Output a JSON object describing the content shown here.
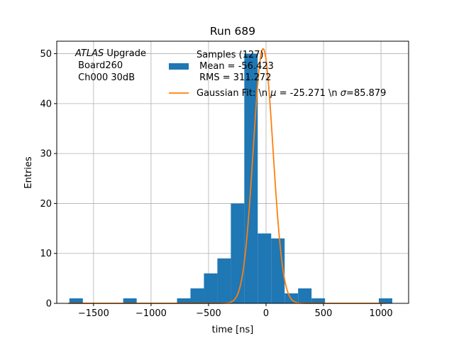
{
  "chart_data": {
    "type": "bar",
    "title": "Run 689",
    "xlabel": "time [ns]",
    "ylabel": "Entries",
    "xlim": [
      -1820,
      1240
    ],
    "ylim": [
      0,
      52.5
    ],
    "xticks": [
      -1500,
      -1000,
      -500,
      0,
      500,
      1000
    ],
    "xtick_labels": [
      "−1500",
      "−1000",
      "−500",
      "0",
      "500",
      "1000"
    ],
    "yticks": [
      0,
      10,
      20,
      30,
      40,
      50
    ],
    "ytick_labels": [
      "0",
      "10",
      "20",
      "30",
      "40",
      "50"
    ],
    "grid": true,
    "annotation_lines": [
      {
        "prefix": "",
        "italic": "ATLAS",
        "suffix": " Upgrade"
      },
      {
        "prefix": " Board260",
        "italic": "",
        "suffix": ""
      },
      {
        "prefix": " Ch000 30dB",
        "italic": "",
        "suffix": ""
      }
    ],
    "histogram": {
      "name_lines": [
        "Samples (127)",
        " Mean = -56.423",
        " RMS = 311.272"
      ],
      "color": "#1f77b4",
      "bin_edges": [
        -1710,
        -1593,
        -1476,
        -1359,
        -1242,
        -1125,
        -1008,
        -891,
        -774,
        -657,
        -540,
        -423,
        -306,
        -189,
        -72,
        45,
        162,
        279,
        396,
        513,
        630,
        747,
        864,
        981,
        1098
      ],
      "counts": [
        1,
        0,
        0,
        0,
        1,
        0,
        0,
        0,
        1,
        3,
        6,
        9,
        20,
        50,
        14,
        13,
        2,
        3,
        1,
        0,
        0,
        0,
        0,
        1
      ]
    },
    "fit": {
      "name": "Gaussian Fit: \\n μ = -25.271 \\n σ=85.879",
      "name_parts": {
        "a": "Gaussian Fit: \\n ",
        "mu": "μ",
        "b": " = -25.271 \\n ",
        "sigma": "σ",
        "c": "=85.879"
      },
      "color": "#ff7f0e",
      "mu": -25.271,
      "sigma": 85.879,
      "amplitude": 51
    },
    "legend_location": "top-center"
  }
}
